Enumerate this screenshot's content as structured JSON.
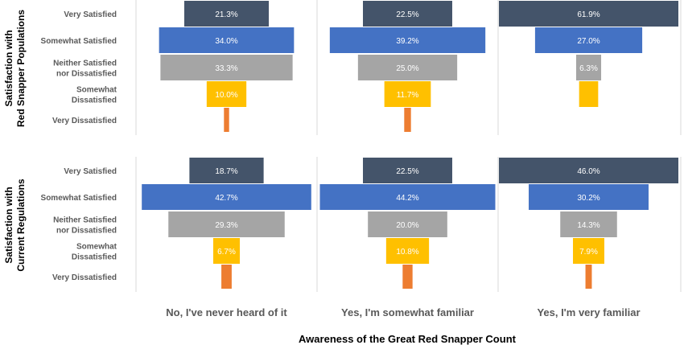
{
  "chart_data": {
    "type": "bar",
    "orientation": "horizontal-centered",
    "xlabel": "Awareness of the Great Red Snapper Count",
    "categories": [
      "Very Satisfied",
      "Somewhat Satisfied",
      "Neither Satisfied nor Dissatisfied",
      "Somewhat Dissatisfied",
      "Very Dissatisfied"
    ],
    "category_lines": [
      [
        "Very Satisfied"
      ],
      [
        "Somewhat Satisfied"
      ],
      [
        "Neither Satisfied",
        "nor Dissatisfied"
      ],
      [
        "Somewhat",
        "Dissatisfied"
      ],
      [
        "Very Dissatisfied"
      ]
    ],
    "columns": [
      "No, I've never heard of it",
      "Yes, I'm somewhat familiar",
      "Yes, I'm very familiar"
    ],
    "colors": [
      "#44546a",
      "#4472c4",
      "#a5a5a5",
      "#ffc000",
      "#ed7d31"
    ],
    "label_colors": [
      "#ffffff",
      "#ffffff",
      "#ffffff",
      "#ffffff",
      "#ffffff"
    ],
    "panels": [
      {
        "title_lines": [
          "Satisfaction with",
          "Red Snapper Populations"
        ],
        "values": [
          [
            21.3,
            34.0,
            33.3,
            10.0,
            1.3
          ],
          [
            22.5,
            39.2,
            25.0,
            11.7,
            1.7
          ],
          [
            61.9,
            27.0,
            6.3,
            4.8,
            0.0
          ]
        ],
        "labels": [
          [
            "21.3%",
            "34.0%",
            "33.3%",
            "10.0%",
            ""
          ],
          [
            "22.5%",
            "39.2%",
            "25.0%",
            "11.7%",
            ""
          ],
          [
            "61.9%",
            "27.0%",
            "6.3%",
            "",
            ""
          ]
        ]
      },
      {
        "title_lines": [
          "Satisfaction with",
          "Current Regulations"
        ],
        "values": [
          [
            18.7,
            42.7,
            29.3,
            6.7,
            2.6
          ],
          [
            22.5,
            44.2,
            20.0,
            10.8,
            2.5
          ],
          [
            46.0,
            30.2,
            14.3,
            7.9,
            1.6
          ]
        ],
        "labels": [
          [
            "18.7%",
            "42.7%",
            "29.3%",
            "6.7%",
            ""
          ],
          [
            "22.5%",
            "44.2%",
            "20.0%",
            "10.8%",
            ""
          ],
          [
            "46.0%",
            "30.2%",
            "14.3%",
            "7.9%",
            ""
          ]
        ]
      }
    ]
  }
}
